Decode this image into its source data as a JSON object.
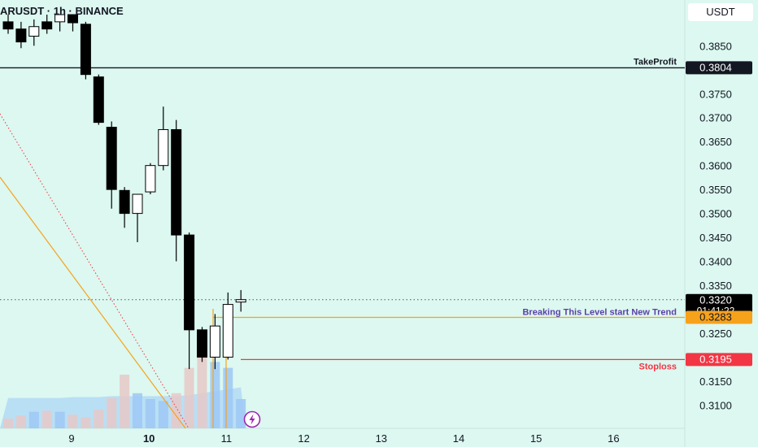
{
  "title": "ARUSDT · 1h · BINANCE",
  "currency": "USDT",
  "chart_data": {
    "type": "candlestick",
    "y_axis": {
      "ticks": [
        "0.3850",
        "0.3750",
        "0.3700",
        "0.3650",
        "0.3600",
        "0.3550",
        "0.3500",
        "0.3450",
        "0.3400",
        "0.3350",
        "0.3250",
        "0.3150",
        "0.3100"
      ],
      "range": [
        0.3065,
        0.3915
      ]
    },
    "x_axis": {
      "ticks": [
        {
          "label": "9",
          "bold": false
        },
        {
          "label": "10",
          "bold": true
        },
        {
          "label": "11",
          "bold": false
        },
        {
          "label": "12",
          "bold": false
        },
        {
          "label": "13",
          "bold": false
        },
        {
          "label": "14",
          "bold": false
        },
        {
          "label": "15",
          "bold": false
        },
        {
          "label": "16",
          "bold": false
        }
      ]
    },
    "candles": [
      {
        "o": 0.39,
        "h": 0.3915,
        "l": 0.3875,
        "c": 0.3885
      },
      {
        "o": 0.3885,
        "h": 0.39,
        "l": 0.3845,
        "c": 0.3858
      },
      {
        "o": 0.387,
        "h": 0.3905,
        "l": 0.385,
        "c": 0.389
      },
      {
        "o": 0.39,
        "h": 0.3915,
        "l": 0.3875,
        "c": 0.3885
      },
      {
        "o": 0.39,
        "h": 0.3915,
        "l": 0.388,
        "c": 0.3915
      },
      {
        "o": 0.3915,
        "h": 0.3915,
        "l": 0.388,
        "c": 0.3898
      },
      {
        "o": 0.3895,
        "h": 0.39,
        "l": 0.378,
        "c": 0.379
      },
      {
        "o": 0.3785,
        "h": 0.379,
        "l": 0.3685,
        "c": 0.369
      },
      {
        "o": 0.368,
        "h": 0.3692,
        "l": 0.351,
        "c": 0.355
      },
      {
        "o": 0.3548,
        "h": 0.3555,
        "l": 0.347,
        "c": 0.35
      },
      {
        "o": 0.35,
        "h": 0.354,
        "l": 0.344,
        "c": 0.354
      },
      {
        "o": 0.3545,
        "h": 0.3605,
        "l": 0.354,
        "c": 0.36
      },
      {
        "o": 0.36,
        "h": 0.3723,
        "l": 0.359,
        "c": 0.3675
      },
      {
        "o": 0.3675,
        "h": 0.3695,
        "l": 0.34,
        "c": 0.3455
      },
      {
        "o": 0.3455,
        "h": 0.346,
        "l": 0.3175,
        "c": 0.3257
      },
      {
        "o": 0.3257,
        "h": 0.3263,
        "l": 0.319,
        "c": 0.32
      },
      {
        "o": 0.32,
        "h": 0.329,
        "l": 0.3175,
        "c": 0.3265
      },
      {
        "o": 0.32,
        "h": 0.3335,
        "l": 0.3195,
        "c": 0.331
      },
      {
        "o": 0.3315,
        "h": 0.334,
        "l": 0.3295,
        "c": 0.332
      }
    ],
    "volume": [
      0.1,
      0.13,
      0.17,
      0.18,
      0.17,
      0.14,
      0.11,
      0.19,
      0.31,
      0.55,
      0.36,
      0.3,
      0.28,
      0.36,
      0.62,
      0.73,
      0.68,
      0.62,
      0.3
    ],
    "volume_ma": [
      0.31,
      0.31,
      0.31,
      0.31,
      0.31,
      0.32,
      0.32,
      0.32,
      0.33,
      0.33,
      0.33,
      0.33,
      0.33,
      0.33,
      0.34,
      0.36,
      0.38,
      0.4,
      0.42
    ],
    "levels": [
      {
        "name": "TakeProfit",
        "value": 0.3804,
        "label": "0.3804",
        "color": "#131722",
        "style": "solid"
      },
      {
        "name": "Breaking This Level start New Trend",
        "value": 0.3283,
        "label": "0.3283",
        "color": "#f7a21b",
        "style": "solid"
      },
      {
        "name": "Stoploss",
        "value": 0.3195,
        "label": "0.3195",
        "color": "#f23645",
        "style": "solid"
      }
    ],
    "current_price": {
      "value": 0.332,
      "label": "0.3320",
      "countdown": "01:41:22"
    },
    "colors": {
      "background": "#dcf8f0",
      "candle": "#000000",
      "volume_bar": "#9ec8f5",
      "volume_ma": "#aad4f7",
      "trendline_orange": "#f7a21b",
      "trendline_dotted": "#f23645",
      "level_text_purple": "#5b3fa8",
      "icon_purple": "#9c27b0"
    }
  },
  "icons": {
    "bolt": "lightning-bolt-icon"
  }
}
